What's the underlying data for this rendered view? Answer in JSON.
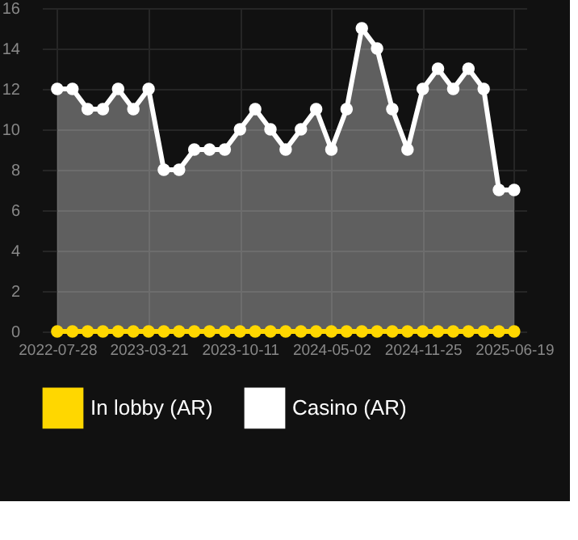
{
  "chart_data": {
    "type": "area",
    "categories": [
      "2022-07-28",
      null,
      null,
      null,
      null,
      null,
      "2023-03-21",
      null,
      null,
      null,
      null,
      null,
      "2023-10-11",
      null,
      null,
      null,
      null,
      null,
      "2024-05-02",
      null,
      null,
      null,
      null,
      null,
      "2024-11-25",
      null,
      null,
      null,
      null,
      null,
      "2025-06-19"
    ],
    "series": [
      {
        "name": "In lobby (AR)",
        "type": "line",
        "color": "#ffd700",
        "values": [
          0,
          0,
          0,
          0,
          0,
          0,
          0,
          0,
          0,
          0,
          0,
          0,
          0,
          0,
          0,
          0,
          0,
          0,
          0,
          0,
          0,
          0,
          0,
          0,
          0,
          0,
          0,
          0,
          0,
          0,
          0
        ]
      },
      {
        "name": "Casino (AR)",
        "color": "#ffffff",
        "values": [
          12,
          12,
          11,
          11,
          12,
          11,
          12,
          8,
          8,
          9,
          9,
          9,
          10,
          11,
          10,
          9,
          10,
          11,
          9,
          11,
          15,
          14,
          11,
          9,
          12,
          13,
          12,
          13,
          12,
          7,
          7
        ]
      }
    ],
    "ylim": [
      0,
      16
    ],
    "yticks": [
      0,
      2,
      4,
      6,
      8,
      10,
      12,
      14,
      16
    ],
    "grid": true,
    "legend": "bottom",
    "marker": "circle",
    "line_style": "solid"
  }
}
